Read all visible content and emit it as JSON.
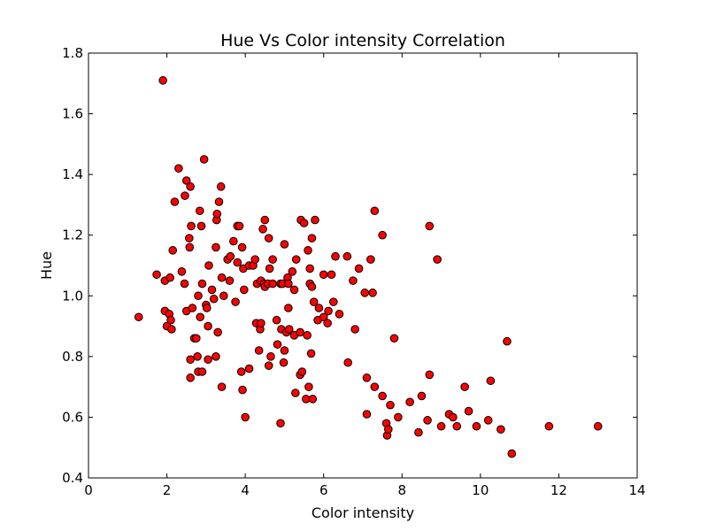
{
  "chart_data": {
    "type": "scatter",
    "title": "Hue Vs Color intensity Correlation",
    "xlabel": "Color intensity",
    "ylabel": "Hue",
    "xlim": [
      0,
      14
    ],
    "ylim": [
      0.4,
      1.8
    ],
    "x_ticks": [
      0,
      2,
      4,
      6,
      8,
      10,
      12,
      14
    ],
    "y_ticks": [
      0.4,
      0.6,
      0.8,
      1.0,
      1.2,
      1.4,
      1.6,
      1.8
    ],
    "x_tick_labels": [
      "0",
      "2",
      "4",
      "6",
      "8",
      "10",
      "12",
      "14"
    ],
    "y_tick_labels": [
      "0.4",
      "0.6",
      "0.8",
      "1.0",
      "1.2",
      "1.4",
      "1.6",
      "1.8"
    ],
    "grid": false,
    "marker_color": "#ff0000",
    "marker_edge_color": "#000000",
    "points": [
      [
        1.28,
        0.93
      ],
      [
        1.74,
        1.07
      ],
      [
        1.9,
        1.71
      ],
      [
        1.95,
        0.95
      ],
      [
        1.95,
        1.05
      ],
      [
        2.0,
        0.9
      ],
      [
        2.06,
        0.94
      ],
      [
        2.08,
        1.06
      ],
      [
        2.1,
        0.92
      ],
      [
        2.12,
        0.89
      ],
      [
        2.15,
        1.15
      ],
      [
        2.2,
        1.31
      ],
      [
        2.3,
        1.42
      ],
      [
        2.38,
        1.08
      ],
      [
        2.45,
        1.04
      ],
      [
        2.46,
        1.33
      ],
      [
        2.5,
        1.38
      ],
      [
        2.5,
        0.95
      ],
      [
        2.57,
        1.19
      ],
      [
        2.58,
        1.16
      ],
      [
        2.6,
        1.36
      ],
      [
        2.6,
        0.79
      ],
      [
        2.6,
        0.73
      ],
      [
        2.62,
        1.23
      ],
      [
        2.65,
        0.96
      ],
      [
        2.7,
        0.86
      ],
      [
        2.75,
        0.86
      ],
      [
        2.78,
        0.8
      ],
      [
        2.8,
        1.0
      ],
      [
        2.8,
        0.75
      ],
      [
        2.84,
        1.28
      ],
      [
        2.85,
        0.93
      ],
      [
        2.88,
        1.23
      ],
      [
        2.9,
        0.75
      ],
      [
        2.9,
        1.04
      ],
      [
        2.95,
        1.45
      ],
      [
        3.0,
        0.97
      ],
      [
        3.02,
        0.96
      ],
      [
        3.05,
        0.9
      ],
      [
        3.05,
        0.79
      ],
      [
        3.07,
        1.1
      ],
      [
        3.15,
        1.02
      ],
      [
        3.2,
        0.99
      ],
      [
        3.25,
        0.8
      ],
      [
        3.25,
        1.16
      ],
      [
        3.27,
        1.25
      ],
      [
        3.28,
        1.27
      ],
      [
        3.3,
        0.88
      ],
      [
        3.33,
        1.31
      ],
      [
        3.38,
        1.36
      ],
      [
        3.4,
        1.06
      ],
      [
        3.4,
        0.7
      ],
      [
        3.45,
        1.0
      ],
      [
        3.55,
        1.12
      ],
      [
        3.6,
        1.05
      ],
      [
        3.62,
        1.13
      ],
      [
        3.7,
        1.18
      ],
      [
        3.75,
        0.98
      ],
      [
        3.8,
        1.23
      ],
      [
        3.8,
        1.11
      ],
      [
        3.85,
        1.23
      ],
      [
        3.9,
        0.75
      ],
      [
        3.92,
        1.16
      ],
      [
        3.93,
        0.69
      ],
      [
        3.95,
        1.09
      ],
      [
        3.97,
        1.02
      ],
      [
        4.0,
        0.6
      ],
      [
        4.1,
        1.1
      ],
      [
        4.1,
        0.76
      ],
      [
        4.2,
        1.1
      ],
      [
        4.25,
        1.12
      ],
      [
        4.28,
        0.91
      ],
      [
        4.3,
        1.04
      ],
      [
        4.35,
        0.82
      ],
      [
        4.38,
        0.89
      ],
      [
        4.4,
        1.05
      ],
      [
        4.4,
        0.91
      ],
      [
        4.45,
        1.22
      ],
      [
        4.48,
        1.04
      ],
      [
        4.5,
        1.25
      ],
      [
        4.5,
        1.03
      ],
      [
        4.58,
        1.04
      ],
      [
        4.6,
        1.19
      ],
      [
        4.6,
        0.77
      ],
      [
        4.62,
        1.09
      ],
      [
        4.65,
        0.8
      ],
      [
        4.7,
        1.12
      ],
      [
        4.7,
        1.04
      ],
      [
        4.8,
        0.92
      ],
      [
        4.82,
        0.84
      ],
      [
        4.9,
        0.58
      ],
      [
        4.9,
        1.04
      ],
      [
        4.92,
        0.89
      ],
      [
        4.95,
        1.04
      ],
      [
        4.98,
        0.78
      ],
      [
        5.0,
        0.82
      ],
      [
        5.0,
        1.17
      ],
      [
        5.05,
        0.88
      ],
      [
        5.08,
        1.06
      ],
      [
        5.1,
        1.04
      ],
      [
        5.1,
        0.96
      ],
      [
        5.12,
        0.89
      ],
      [
        5.2,
        1.08
      ],
      [
        5.25,
        0.87
      ],
      [
        5.25,
        1.02
      ],
      [
        5.28,
        0.68
      ],
      [
        5.3,
        1.12
      ],
      [
        5.4,
        0.74
      ],
      [
        5.4,
        0.88
      ],
      [
        5.42,
        1.25
      ],
      [
        5.45,
        0.75
      ],
      [
        5.5,
        1.24
      ],
      [
        5.55,
        0.66
      ],
      [
        5.58,
        0.87
      ],
      [
        5.6,
        1.15
      ],
      [
        5.62,
        0.7
      ],
      [
        5.65,
        1.04
      ],
      [
        5.65,
        1.09
      ],
      [
        5.68,
        0.81
      ],
      [
        5.7,
        1.19
      ],
      [
        5.72,
        0.66
      ],
      [
        5.7,
        1.03
      ],
      [
        5.75,
        0.98
      ],
      [
        5.78,
        1.25
      ],
      [
        5.85,
        0.92
      ],
      [
        5.88,
        0.96
      ],
      [
        6.0,
        0.93
      ],
      [
        6.0,
        1.07
      ],
      [
        6.1,
        0.91
      ],
      [
        6.12,
        0.95
      ],
      [
        6.2,
        1.07
      ],
      [
        6.25,
        0.98
      ],
      [
        6.3,
        1.13
      ],
      [
        6.4,
        0.94
      ],
      [
        6.6,
        1.13
      ],
      [
        6.62,
        0.78
      ],
      [
        6.75,
        1.05
      ],
      [
        6.8,
        0.89
      ],
      [
        6.9,
        1.09
      ],
      [
        7.05,
        1.01
      ],
      [
        7.1,
        0.73
      ],
      [
        7.1,
        0.61
      ],
      [
        7.2,
        1.12
      ],
      [
        7.25,
        1.01
      ],
      [
        7.3,
        1.28
      ],
      [
        7.3,
        0.7
      ],
      [
        7.5,
        1.2
      ],
      [
        7.5,
        0.67
      ],
      [
        7.6,
        0.58
      ],
      [
        7.62,
        0.54
      ],
      [
        7.65,
        0.56
      ],
      [
        7.7,
        0.64
      ],
      [
        7.8,
        0.86
      ],
      [
        7.9,
        0.6
      ],
      [
        8.2,
        0.65
      ],
      [
        8.42,
        0.55
      ],
      [
        8.5,
        0.67
      ],
      [
        8.65,
        0.59
      ],
      [
        8.7,
        0.74
      ],
      [
        8.7,
        1.23
      ],
      [
        8.9,
        1.12
      ],
      [
        9.0,
        0.57
      ],
      [
        9.2,
        0.61
      ],
      [
        9.3,
        0.6
      ],
      [
        9.4,
        0.57
      ],
      [
        9.6,
        0.7
      ],
      [
        9.7,
        0.62
      ],
      [
        9.9,
        0.57
      ],
      [
        10.2,
        0.59
      ],
      [
        10.26,
        0.72
      ],
      [
        10.52,
        0.56
      ],
      [
        10.68,
        0.85
      ],
      [
        10.8,
        0.48
      ],
      [
        11.75,
        0.57
      ],
      [
        13.0,
        0.57
      ]
    ]
  }
}
